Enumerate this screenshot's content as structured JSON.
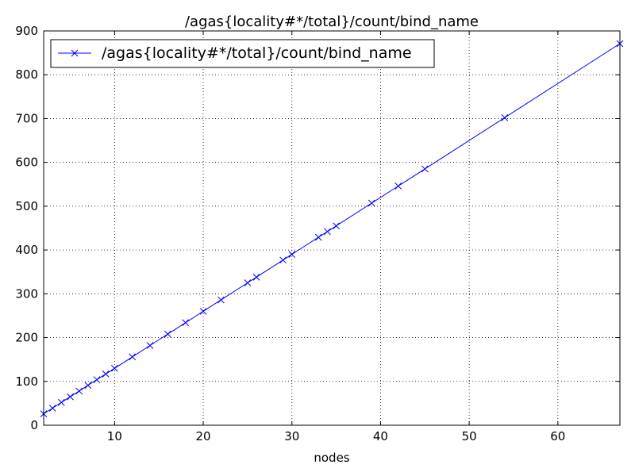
{
  "chart_data": {
    "type": "line",
    "title": "/agas{locality#*/total}/count/bind_name",
    "xlabel": "nodes",
    "ylabel": "",
    "xlim": [
      2,
      67
    ],
    "ylim": [
      0,
      900
    ],
    "xticks": [
      10,
      20,
      30,
      40,
      50,
      60
    ],
    "yticks": [
      0,
      100,
      200,
      300,
      400,
      500,
      600,
      700,
      800,
      900
    ],
    "grid": true,
    "legend_position": "top-left",
    "series": [
      {
        "name": "/agas{locality#*/total}/count/bind_name",
        "color": "#0000ff",
        "marker": "x",
        "x": [
          2,
          3,
          4,
          5,
          6,
          7,
          8,
          9,
          10,
          12,
          14,
          16,
          18,
          20,
          22,
          25,
          26,
          29,
          30,
          33,
          34,
          35,
          39,
          42,
          45,
          54,
          67
        ],
        "y": [
          26,
          39,
          52,
          65,
          78,
          91,
          104,
          117,
          130,
          156,
          182,
          208,
          234,
          260,
          286,
          325,
          338,
          377,
          390,
          429,
          442,
          455,
          507,
          546,
          585,
          702,
          871
        ]
      }
    ]
  }
}
